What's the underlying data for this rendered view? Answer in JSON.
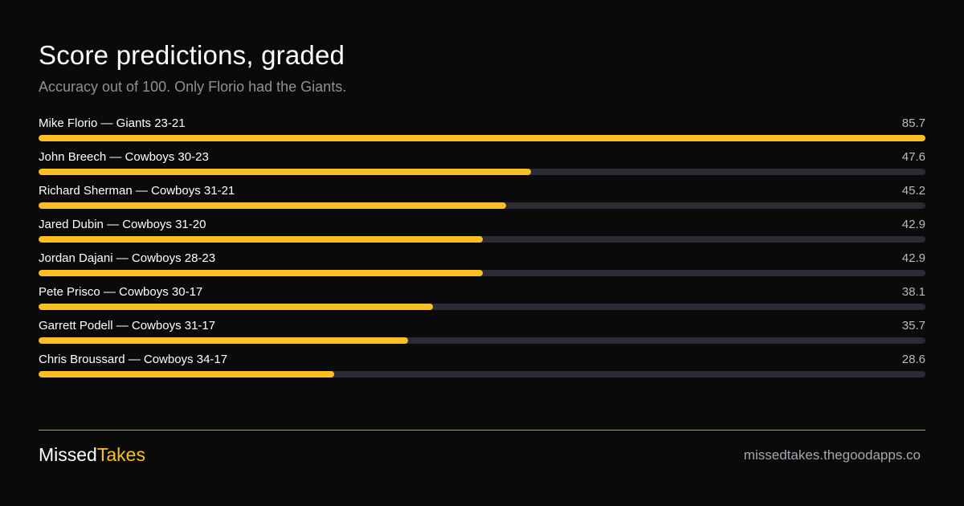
{
  "header": {
    "title": "Score predictions, graded",
    "subtitle": "Accuracy out of 100. Only Florio had the Giants."
  },
  "colors": {
    "accent": "#fbbf24",
    "track": "#2c2b33",
    "background": "#0a0a0a"
  },
  "chart_data": {
    "type": "bar",
    "orientation": "horizontal",
    "title": "Score predictions, graded",
    "subtitle": "Accuracy out of 100. Only Florio had the Giants.",
    "xlim": [
      0,
      85.7
    ],
    "categories": [
      "Mike Florio — Giants 23-21",
      "John Breech — Cowboys 30-23",
      "Richard Sherman — Cowboys 31-21",
      "Jared Dubin — Cowboys 31-20",
      "Jordan Dajani — Cowboys 28-23",
      "Pete Prisco — Cowboys 30-17",
      "Garrett Podell — Cowboys 31-17",
      "Chris Broussard — Cowboys 34-17"
    ],
    "values": [
      85.7,
      47.6,
      45.2,
      42.9,
      42.9,
      38.1,
      35.7,
      28.6
    ],
    "value_labels": [
      "85.7",
      "47.6",
      "45.2",
      "42.9",
      "42.9",
      "38.1",
      "35.7",
      "28.6"
    ],
    "grid": false,
    "legend": "none"
  },
  "footer": {
    "brand_part1": "Missed",
    "brand_part2": "Takes",
    "site": "missedtakes.thegoodapps.co"
  }
}
